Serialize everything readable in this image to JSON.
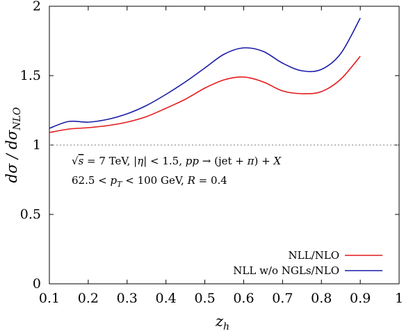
{
  "chart_data": {
    "type": "line",
    "xlabel": "z_h",
    "ylabel": "dσ / dσ_NLO",
    "xlim": [
      0.1,
      1.0
    ],
    "ylim": [
      0,
      2
    ],
    "xticks": [
      "0.1",
      "0.2",
      "0.3",
      "0.4",
      "0.5",
      "0.6",
      "0.7",
      "0.8",
      "0.9",
      "1"
    ],
    "yticks": [
      "0",
      "0.5",
      "1",
      "1.5",
      "2"
    ],
    "grid": false,
    "legend_position": "bottom-right",
    "reference_line": {
      "y": 1,
      "style": "dotted"
    },
    "annotations": [
      "√s = 7 TeV, |η| < 1.5, pp → (jet + π) + X",
      "62.5 < p_T < 100 GeV, R = 0.4"
    ],
    "series": [
      {
        "name": "NLL/NLO",
        "color": "#e41a1c",
        "x": [
          0.1,
          0.15,
          0.2,
          0.25,
          0.3,
          0.35,
          0.4,
          0.45,
          0.5,
          0.55,
          0.6,
          0.65,
          0.7,
          0.75,
          0.8,
          0.85,
          0.9
        ],
        "y": [
          1.09,
          1.115,
          1.125,
          1.14,
          1.165,
          1.205,
          1.265,
          1.33,
          1.41,
          1.47,
          1.49,
          1.455,
          1.39,
          1.37,
          1.385,
          1.475,
          1.64
        ]
      },
      {
        "name": "NLL w/o NGLs/NLO",
        "color": "#1a1aa8",
        "x": [
          0.1,
          0.15,
          0.2,
          0.25,
          0.3,
          0.35,
          0.4,
          0.45,
          0.5,
          0.55,
          0.6,
          0.65,
          0.7,
          0.75,
          0.8,
          0.85,
          0.9
        ],
        "y": [
          1.12,
          1.17,
          1.165,
          1.185,
          1.225,
          1.285,
          1.365,
          1.455,
          1.555,
          1.655,
          1.7,
          1.675,
          1.59,
          1.535,
          1.545,
          1.66,
          1.915
        ]
      }
    ]
  }
}
